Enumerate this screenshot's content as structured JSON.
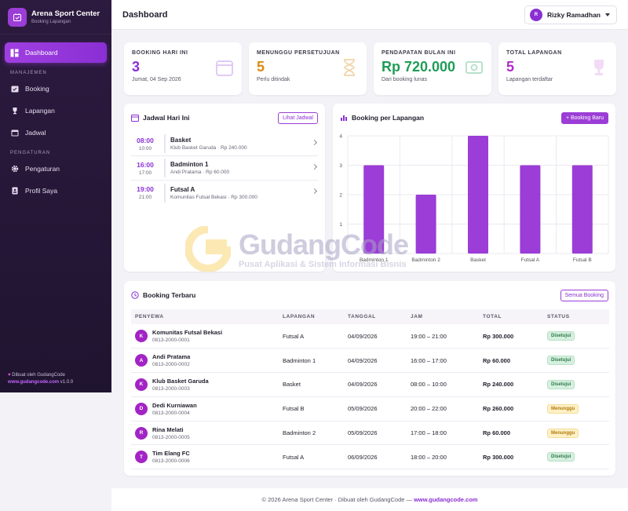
{
  "brand": {
    "title": "Arena Sport Center",
    "subtitle": "Booking Lapangan"
  },
  "sidebar": {
    "dashboard": "Dashboard",
    "section_manage": "MANAJEMEN",
    "booking": "Booking",
    "lapangan": "Lapangan",
    "jadwal": "Jadwal",
    "section_settings": "PENGATURAN",
    "pengaturan": "Pengaturan",
    "profil": "Profil Saya",
    "footer_made": "Dibuat oleh GudangCode",
    "footer_link": "www.gudangcode.com",
    "footer_version": "v1.0.0"
  },
  "header": {
    "title": "Dashboard",
    "user_initial": "R",
    "user_name": "Rizky Ramadhan"
  },
  "stats": [
    {
      "label": "BOOKING HARI INI",
      "value": "3",
      "sub": "Jumat, 04 Sep 2026",
      "color": "#8a2fd4"
    },
    {
      "label": "MENUNGGU PERSETUJUAN",
      "value": "5",
      "sub": "Perlu ditindak",
      "color": "#d98a0f"
    },
    {
      "label": "PENDAPATAN BULAN INI",
      "value": "Rp 720.000",
      "sub": "Dari booking lunas",
      "color": "#1f9d57"
    },
    {
      "label": "TOTAL LAPANGAN",
      "value": "5",
      "sub": "Lapangan terdaftar",
      "color": "#b02bc9"
    }
  ],
  "schedule": {
    "title": "Jadwal Hari Ini",
    "action": "Lihat Jadwal",
    "items": [
      {
        "start": "08:00",
        "end": "10:00",
        "name": "Basket",
        "detail": "Klub Basket Garuda · Rp 240.000"
      },
      {
        "start": "16:00",
        "end": "17:00",
        "name": "Badminton 1",
        "detail": "Andi Pratama · Rp 60.000"
      },
      {
        "start": "19:00",
        "end": "21:00",
        "name": "Futsal A",
        "detail": "Komunitas Futsal Bekasi · Rp 300.000"
      }
    ]
  },
  "chart_panel": {
    "title": "Booking per Lapangan",
    "action": "+ Booking Baru"
  },
  "chart_data": {
    "type": "bar",
    "categories": [
      "Badminton 1",
      "Badminton 2",
      "Basket",
      "Futsal A",
      "Futsal B"
    ],
    "values": [
      3,
      2,
      4,
      3,
      3
    ],
    "ylim": [
      0,
      4
    ],
    "yticks": [
      "1",
      "2",
      "3",
      "4"
    ],
    "grid": true,
    "bar_color": "#9b3dd6"
  },
  "recent": {
    "title": "Booking Terbaru",
    "action": "Semua Booking",
    "columns": [
      "PENYEWA",
      "LAPANGAN",
      "TANGGAL",
      "JAM",
      "TOTAL",
      "STATUS"
    ],
    "rows": [
      {
        "initial": "K",
        "name": "Komunitas Futsal Bekasi",
        "phone": "0813-2000-0001",
        "court": "Futsal A",
        "date": "04/09/2026",
        "time": "19:00 – 21:00",
        "total": "Rp 300.000",
        "status": "Disetujui",
        "status_type": "ok"
      },
      {
        "initial": "A",
        "name": "Andi Pratama",
        "phone": "0813-2000-0002",
        "court": "Badminton 1",
        "date": "04/09/2026",
        "time": "16:00 – 17:00",
        "total": "Rp 60.000",
        "status": "Disetujui",
        "status_type": "ok"
      },
      {
        "initial": "K",
        "name": "Klub Basket Garuda",
        "phone": "0813-2000-0003",
        "court": "Basket",
        "date": "04/09/2026",
        "time": "08:00 – 10:00",
        "total": "Rp 240.000",
        "status": "Disetujui",
        "status_type": "ok"
      },
      {
        "initial": "D",
        "name": "Dedi Kurniawan",
        "phone": "0813-2000-0004",
        "court": "Futsal B",
        "date": "05/09/2026",
        "time": "20:00 – 22:00",
        "total": "Rp 260.000",
        "status": "Menunggu",
        "status_type": "wait"
      },
      {
        "initial": "R",
        "name": "Rina Melati",
        "phone": "0813-2000-0005",
        "court": "Badminton 2",
        "date": "05/09/2026",
        "time": "17:00 – 18:00",
        "total": "Rp 60.000",
        "status": "Menunggu",
        "status_type": "wait"
      },
      {
        "initial": "T",
        "name": "Tim Elang FC",
        "phone": "0813-2000-0006",
        "court": "Futsal A",
        "date": "06/09/2026",
        "time": "18:00 – 20:00",
        "total": "Rp 300.000",
        "status": "Disetujui",
        "status_type": "ok"
      }
    ]
  },
  "footer": {
    "text": "© 2026 Arena Sport Center · Dibuat oleh GudangCode — ",
    "link": "www.gudangcode.com"
  },
  "watermark": {
    "title": "GudangCode",
    "subtitle": "Pusat Aplikasi & Sistem Informasi Bisnis"
  }
}
